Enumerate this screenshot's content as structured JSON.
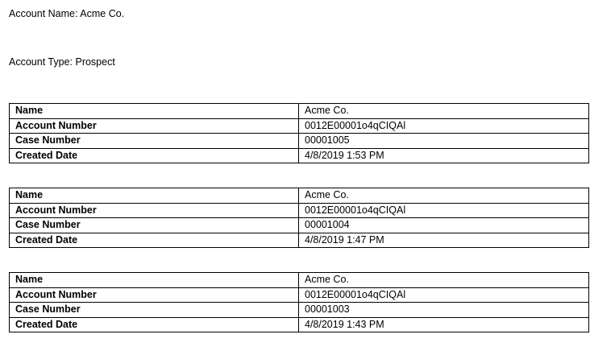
{
  "account_name": {
    "label": "Account Name:",
    "value": "Acme Co."
  },
  "account_type": {
    "label": "Account Type:",
    "value": "Prospect"
  },
  "labels": {
    "name": "Name",
    "account_number": "Account Number",
    "case_number": "Case Number",
    "created_date": "Created Date"
  },
  "cases": [
    {
      "name": "Acme Co.",
      "account_number": "0012E00001o4qCIQAl",
      "case_number": "00001005",
      "created_date": "4/8/2019 1:53 PM"
    },
    {
      "name": "Acme Co.",
      "account_number": "0012E00001o4qCIQAl",
      "case_number": "00001004",
      "created_date": "4/8/2019 1:47 PM"
    },
    {
      "name": "Acme Co.",
      "account_number": "0012E00001o4qCIQAl",
      "case_number": "00001003",
      "created_date": "4/8/2019 1:43 PM"
    }
  ]
}
